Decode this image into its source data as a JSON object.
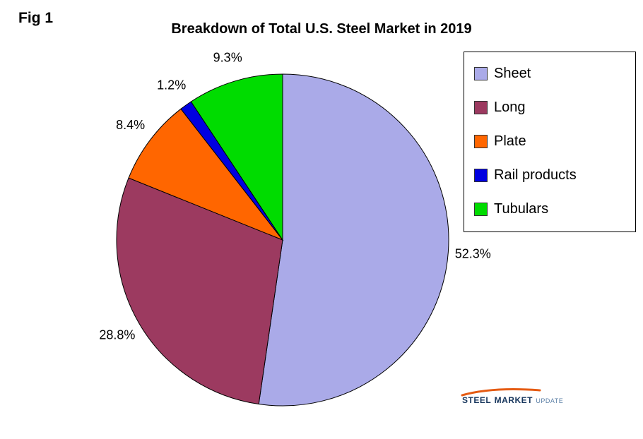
{
  "fig_label": "Fig 1",
  "title": "Breakdown of Total U.S. Steel Market in 2019",
  "chart_data": {
    "type": "pie",
    "title": "Breakdown of Total U.S. Steel Market in 2019",
    "categories": [
      "Sheet",
      "Long",
      "Plate",
      "Rail products",
      "Tubulars"
    ],
    "values": [
      52.3,
      28.8,
      8.4,
      1.2,
      9.3
    ],
    "labels": [
      "52.3%",
      "28.8%",
      "8.4%",
      "1.2%",
      "9.3%"
    ],
    "colors": [
      "#aaaae8",
      "#9c3a60",
      "#ff6600",
      "#0000e0",
      "#00dc00"
    ],
    "start_angle_deg": -90,
    "direction": "clockwise",
    "legend_position": "right",
    "slice_outline_color": "#000000"
  },
  "logo": {
    "steel": "STEEL",
    "market": "MARKET",
    "update": "UPDATE",
    "swoosh_color": "#e55b13"
  }
}
